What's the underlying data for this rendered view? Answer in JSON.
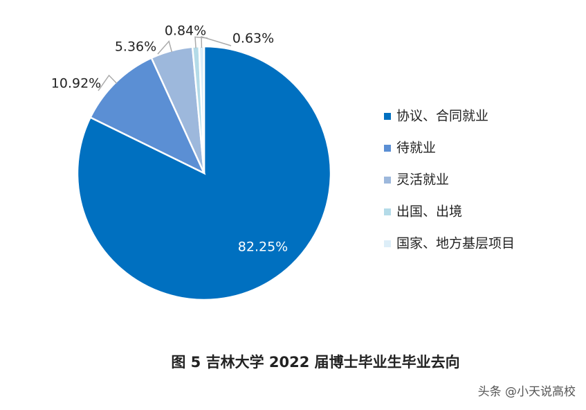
{
  "chart_data": {
    "type": "pie",
    "title": "图 5 吉林大学 2022 届博士毕业生毕业去向",
    "categories": [
      "协议、合同就业",
      "待就业",
      "灵活就业",
      "出国、出境",
      "国家、地方基层项目"
    ],
    "values": [
      82.25,
      10.92,
      5.36,
      0.84,
      0.63
    ],
    "value_labels": [
      "82.25%",
      "10.92%",
      "5.36%",
      "0.84%",
      "0.63%"
    ],
    "colors": [
      "#0070c0",
      "#5b8fd4",
      "#9db8dc",
      "#b4dbe8",
      "#ddeef8"
    ],
    "legend": "right",
    "watermark": "头条 @小天说高校"
  }
}
